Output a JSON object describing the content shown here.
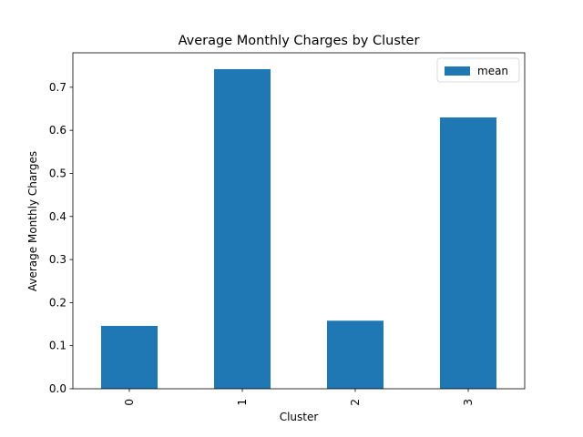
{
  "chart_data": {
    "type": "bar",
    "title": "Average Monthly Charges by Cluster",
    "xlabel": "Cluster",
    "ylabel": "Average Monthly Charges",
    "categories": [
      "0",
      "1",
      "2",
      "3"
    ],
    "series": [
      {
        "name": "mean",
        "values": [
          0.146,
          0.742,
          0.158,
          0.63
        ]
      }
    ],
    "ylim": [
      0,
      0.78
    ],
    "yticks": [
      "0.0",
      "0.1",
      "0.2",
      "0.3",
      "0.4",
      "0.5",
      "0.6",
      "0.7"
    ],
    "grid": false,
    "legend": "top-right",
    "colors": {
      "bar": "#1f77b4"
    }
  }
}
